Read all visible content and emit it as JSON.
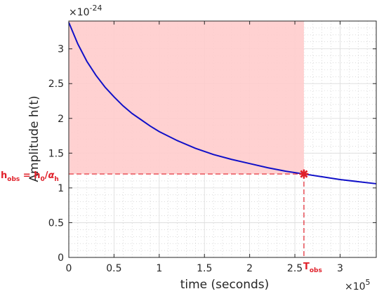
{
  "chart_data": {
    "type": "line",
    "xlabel": "time (seconds)",
    "ylabel": "Amplitude h(t)",
    "x_exponent_label": "×10",
    "x_exponent": "5",
    "y_exponent_label": "×10",
    "y_exponent": "-24",
    "xlim": [
      0,
      3.4
    ],
    "ylim": [
      0,
      3.4
    ],
    "x_ticks": [
      0,
      0.5,
      1,
      1.5,
      2,
      2.5,
      3
    ],
    "x_tick_labels": [
      "0",
      "0.5",
      "1",
      "1.5",
      "2",
      "2.5",
      "3"
    ],
    "y_ticks": [
      0,
      0.5,
      1,
      1.5,
      2,
      2.5,
      3
    ],
    "y_tick_labels": [
      "0",
      "0.5",
      "1",
      "1.5",
      "2",
      "2.5",
      "3"
    ],
    "grid": true,
    "minor_grid": true,
    "series": [
      {
        "color": "#1010c8",
        "x": [
          0,
          0.1,
          0.2,
          0.3,
          0.4,
          0.5,
          0.6,
          0.7,
          0.8,
          0.9,
          1.0,
          1.2,
          1.4,
          1.6,
          1.8,
          2.0,
          2.2,
          2.4,
          2.6,
          2.8,
          3.0,
          3.2,
          3.4
        ],
        "y": [
          3.38,
          3.07,
          2.82,
          2.62,
          2.45,
          2.31,
          2.18,
          2.07,
          1.98,
          1.89,
          1.81,
          1.68,
          1.57,
          1.48,
          1.41,
          1.35,
          1.29,
          1.24,
          1.2,
          1.16,
          1.12,
          1.09,
          1.06
        ]
      }
    ],
    "shaded_region": {
      "x": [
        0,
        2.6
      ],
      "y": [
        1.2,
        3.4
      ],
      "color": "#ffcccc"
    },
    "marker": {
      "x": 2.6,
      "y": 1.2,
      "color": "#e0202a"
    },
    "annotations": {
      "h_obs": {
        "h": "h",
        "sub": "obs",
        "mid": " = h",
        "sub0": "0",
        "slash": "/",
        "alpha": "α",
        "subh": "h"
      },
      "t_obs": {
        "T": "T",
        "sub": "obs"
      }
    },
    "annotation_color": "#e0202a"
  }
}
